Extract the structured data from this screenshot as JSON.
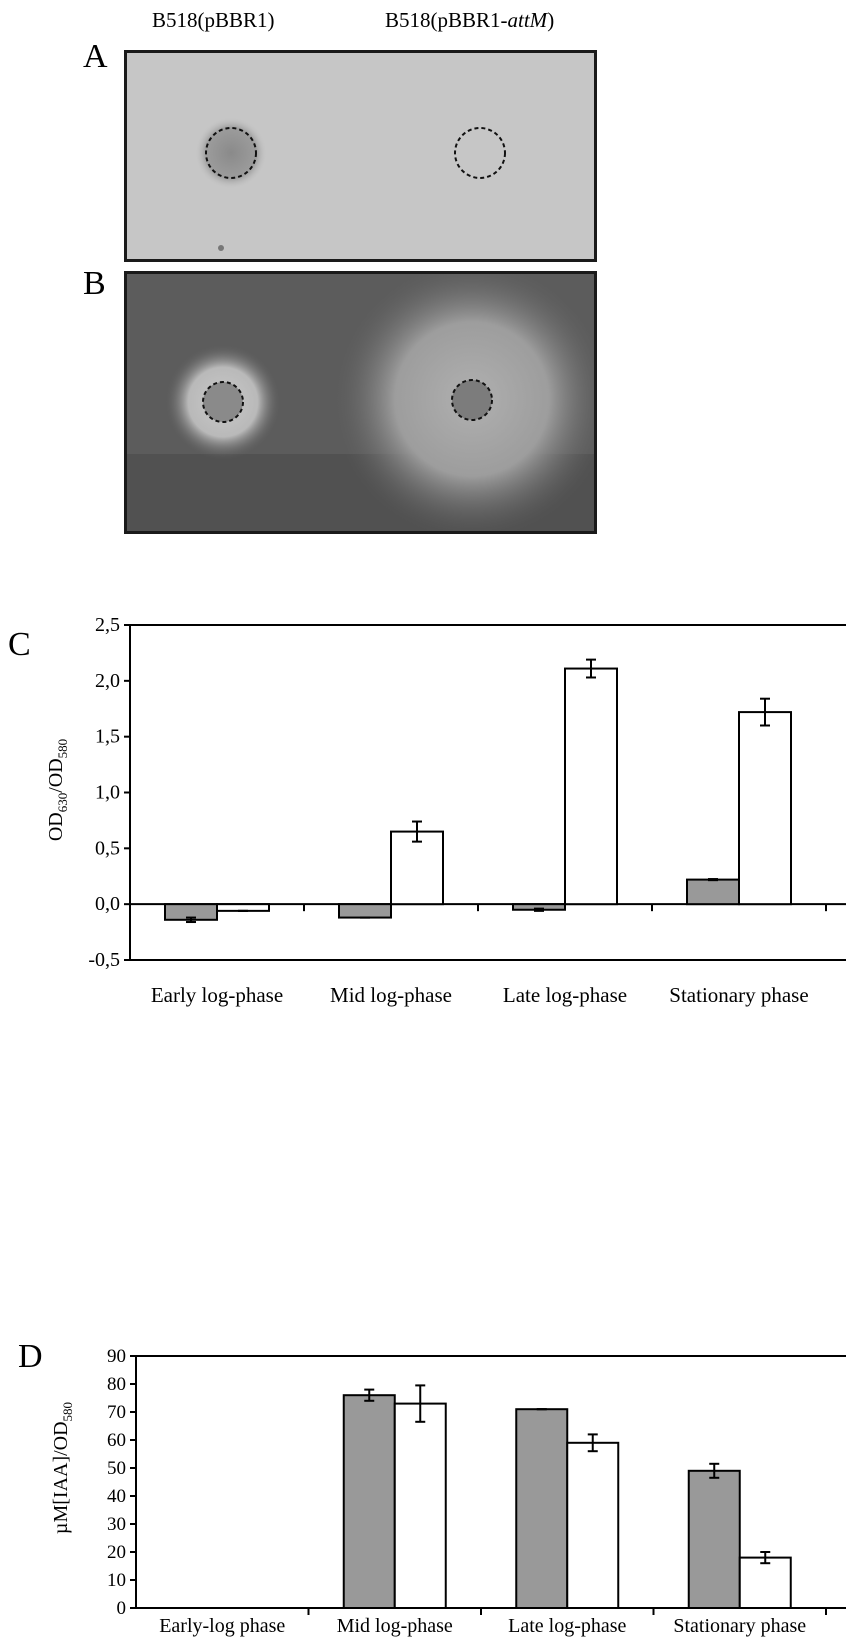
{
  "photo_panels": {
    "col_left_label": "B518(pBBR1)",
    "col_right_base": "B518(pBBR1-",
    "col_right_italic": "attM",
    "col_right_close": ")",
    "panel_a": "A",
    "panel_b": "B"
  },
  "colors": {
    "strain_control": "#999999",
    "strain_attM": "#ffffff",
    "plate_a_bg": "#c4c4c4",
    "plate_b_bg": "#5a5a5a"
  },
  "chart_data": [
    {
      "panel": "C",
      "type": "bar",
      "ylabel_main": "OD",
      "ylabel_sub1": "630",
      "ylabel_sep": "/OD",
      "ylabel_sub2": "580",
      "categories": [
        "Early log-phase",
        "Mid log-phase",
        "Late log-phase",
        "Stationary phase"
      ],
      "ylim": [
        -0.5,
        2.5
      ],
      "yticks": [
        "-0,5",
        "0,0",
        "0,5",
        "1,0",
        "1,5",
        "2,0",
        "2,5"
      ],
      "series": [
        {
          "values": [
            -0.14,
            -0.12,
            -0.05,
            0.22
          ],
          "errors": [
            0.02,
            0.0,
            0.01,
            0.005
          ],
          "color": "#999999"
        },
        {
          "values": [
            -0.06,
            0.65,
            2.11,
            1.72
          ],
          "errors": [
            0.0,
            0.09,
            0.08,
            0.12
          ],
          "color": "#ffffff"
        }
      ]
    },
    {
      "panel": "D",
      "type": "bar",
      "ylabel_main": "µM[IAA]/OD",
      "ylabel_sub": "580",
      "categories": [
        "Early-log phase",
        "Mid log-phase",
        "Late log-phase",
        "Stationary phase"
      ],
      "ylim": [
        0,
        90
      ],
      "yticks": [
        "0",
        "10",
        "20",
        "30",
        "40",
        "50",
        "60",
        "70",
        "80",
        "90"
      ],
      "series": [
        {
          "values": [
            0,
            76,
            71,
            49
          ],
          "errors": [
            0,
            2,
            0,
            2.5
          ],
          "color": "#999999"
        },
        {
          "values": [
            0,
            73,
            59,
            18
          ],
          "errors": [
            0,
            6.5,
            3,
            2
          ],
          "color": "#ffffff"
        }
      ]
    }
  ]
}
